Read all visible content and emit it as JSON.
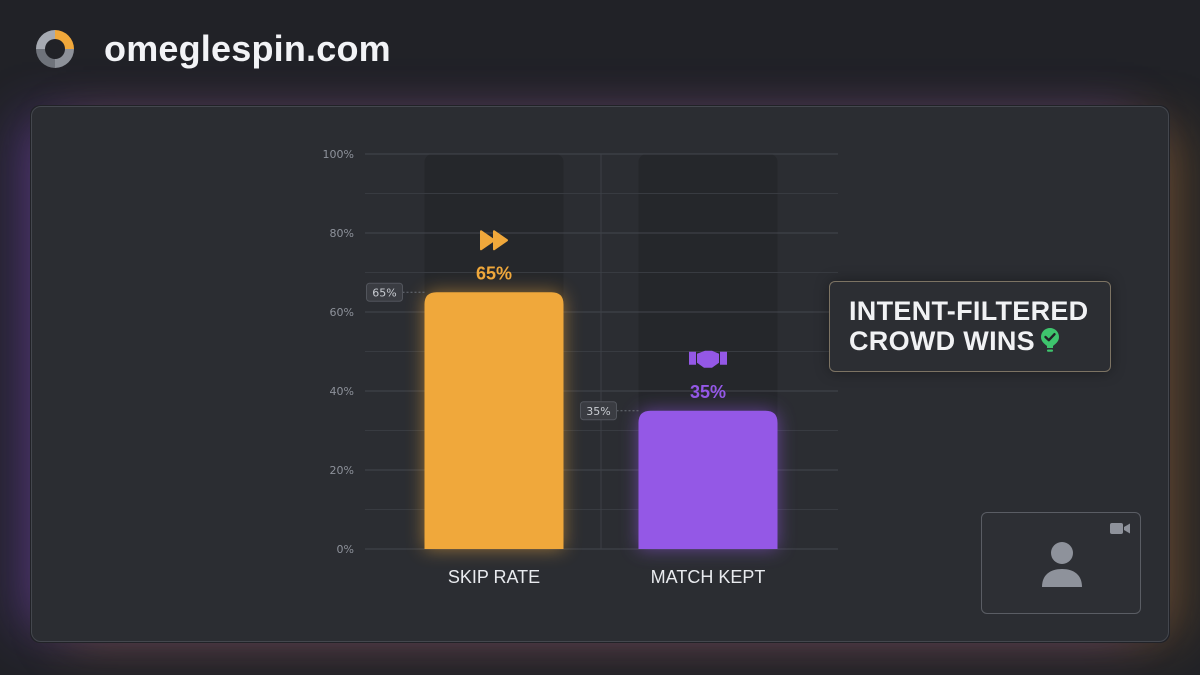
{
  "site": {
    "name": "omeglespin.com"
  },
  "colors": {
    "skip": "#f0a83b",
    "match": "#9458e6",
    "check": "#3ec46d",
    "background": "#212227",
    "panel": "#2b2d32"
  },
  "callout": {
    "line1": "INTENT-FILTERED",
    "line2": "CROWD WINS",
    "icon": "check-shield-icon"
  },
  "video_tile": {
    "camera_icon": "video-camera-icon",
    "avatar_icon": "person-icon"
  },
  "chart_data": {
    "type": "bar",
    "categories": [
      "SKIP RATE",
      "MATCH KEPT"
    ],
    "values": [
      65,
      35
    ],
    "value_labels": [
      "65%",
      "35%"
    ],
    "marker_labels": [
      "65%",
      "35%"
    ],
    "icons": [
      "fast-forward-icon",
      "handshake-icon"
    ],
    "colors": [
      "#f0a83b",
      "#9458e6"
    ],
    "ylim": [
      0,
      100
    ],
    "y_ticks": [
      0,
      20,
      40,
      60,
      80,
      100
    ],
    "y_tick_labels": [
      "0%",
      "20%",
      "40%",
      "60%",
      "80%",
      "100%"
    ],
    "grid": true,
    "title": "",
    "xlabel": "",
    "ylabel": ""
  }
}
